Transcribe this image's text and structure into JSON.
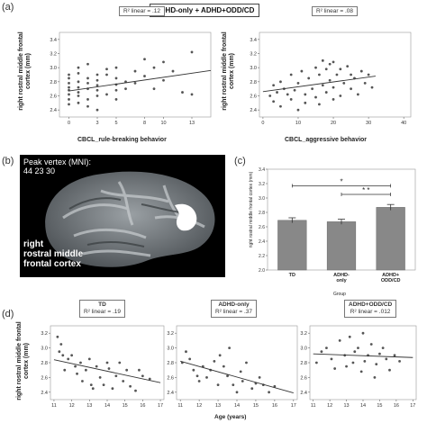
{
  "panels": {
    "a": {
      "letter": "(a)",
      "header": "ADHD-only + ADHD+ODD/CD",
      "ylabel_lines": [
        "right rostral middle frontal",
        "cortex (mm)"
      ],
      "left": {
        "r2_label": "R² linear = .12",
        "xlabel": "CBCL_rule-breaking behavior"
      },
      "right": {
        "r2_label": "R² linear = .08",
        "xlabel": "CBCL_aggressive behavior"
      }
    },
    "b": {
      "letter": "(b)",
      "peak_title": "Peak vertex (MNI):",
      "peak_coords": "44 23 30",
      "region_lines": [
        "right",
        "rostral middle",
        "frontal cortex"
      ]
    },
    "c": {
      "letter": "(c)",
      "ylabel_lines": [
        "right rostral middle frontal cortex (mm)"
      ],
      "xlabel": "Group",
      "sig1": "*",
      "sig2": "* *"
    },
    "d": {
      "letter": "(d)",
      "ylabel_lines": [
        "right rostral middle frontal",
        "cortex (mm)"
      ],
      "xlabel": "Age (years)",
      "sub": [
        {
          "title": "TD",
          "r2_label": "R² linear = .19"
        },
        {
          "title": "ADHD-only",
          "r2_label": "R² linear = .37"
        },
        {
          "title": "ADHD+ODD/CD",
          "r2_label": "R² linear = .012"
        }
      ]
    }
  },
  "colors": {
    "points": "#555555",
    "line": "#333333",
    "bars": "#888888",
    "highlight": "#ffffff",
    "brain_bg": "#000000"
  },
  "chart_data": [
    {
      "type": "scatter",
      "id": "a-left",
      "xlabel": "CBCL_rule-breaking behavior",
      "ylabel": "right rostral middle frontal cortex (mm)",
      "xlim": [
        -1,
        15
      ],
      "ylim": [
        2.3,
        3.5
      ],
      "xticks": [
        0,
        3,
        5,
        8,
        10,
        13
      ],
      "yticks": [
        2.4,
        2.6,
        2.8,
        3.0,
        3.2,
        3.4
      ],
      "x": [
        0,
        0,
        0,
        0,
        0,
        0,
        0,
        0,
        1,
        1,
        1,
        1,
        1,
        1,
        1,
        2,
        2,
        2,
        2,
        2,
        2,
        3,
        3,
        3,
        3,
        3,
        3,
        4,
        4,
        4,
        5,
        5,
        5,
        5,
        5,
        6,
        6,
        7,
        7,
        8,
        8,
        9,
        9,
        10,
        10,
        11,
        12,
        13,
        13
      ],
      "y": [
        2.55,
        2.62,
        2.68,
        2.72,
        2.78,
        2.85,
        2.9,
        2.48,
        2.6,
        2.65,
        2.72,
        2.8,
        2.92,
        3.0,
        2.5,
        2.55,
        2.7,
        2.78,
        2.85,
        2.45,
        3.05,
        2.6,
        2.68,
        2.75,
        2.82,
        2.9,
        2.4,
        2.62,
        2.9,
        2.98,
        2.55,
        2.68,
        2.76,
        2.85,
        3.0,
        2.7,
        2.8,
        2.78,
        2.95,
        2.88,
        3.12,
        2.7,
        3.0,
        2.82,
        3.08,
        2.95,
        2.65,
        3.22,
        2.62
      ],
      "fit": {
        "x": [
          0,
          15
        ],
        "y": [
          2.67,
          2.96
        ]
      },
      "annotation": "R² linear = .12"
    },
    {
      "type": "scatter",
      "id": "a-right",
      "xlabel": "CBCL_aggressive behavior",
      "ylabel": "right rostral middle frontal cortex (mm)",
      "xlim": [
        -1,
        42
      ],
      "ylim": [
        2.3,
        3.5
      ],
      "xticks": [
        0,
        10,
        20,
        30,
        40
      ],
      "yticks": [
        2.4,
        2.6,
        2.8,
        3.0,
        3.2,
        3.4
      ],
      "x": [
        2,
        3,
        3,
        4,
        5,
        5,
        6,
        7,
        8,
        8,
        9,
        10,
        10,
        11,
        12,
        12,
        13,
        14,
        15,
        15,
        16,
        16,
        17,
        17,
        18,
        18,
        19,
        19,
        20,
        20,
        20,
        21,
        22,
        22,
        23,
        24,
        25,
        25,
        26,
        27,
        28,
        29,
        30,
        31
      ],
      "y": [
        2.6,
        2.75,
        2.52,
        2.65,
        2.8,
        2.45,
        2.7,
        2.62,
        2.9,
        2.55,
        2.68,
        2.78,
        2.4,
        2.95,
        2.62,
        2.5,
        2.85,
        2.7,
        3.0,
        2.58,
        2.9,
        2.48,
        3.1,
        2.75,
        2.98,
        2.65,
        3.05,
        2.82,
        3.08,
        2.72,
        2.55,
        2.9,
        2.98,
        2.6,
        2.78,
        3.02,
        2.7,
        2.9,
        2.85,
        2.62,
        2.95,
        2.78,
        2.9,
        2.72
      ],
      "fit": {
        "x": [
          0,
          32
        ],
        "y": [
          2.66,
          2.88
        ]
      },
      "annotation": "R² linear = .08"
    },
    {
      "type": "bar",
      "id": "c",
      "categories": [
        "TD",
        "ADHD-only",
        "ADHD+ODD/CD"
      ],
      "values": [
        2.69,
        2.67,
        2.87
      ],
      "errors": [
        0.035,
        0.035,
        0.04
      ],
      "xlabel": "Group",
      "ylabel": "right rostral middle frontal cortex (mm)",
      "ylim": [
        2.0,
        3.4
      ],
      "yticks": [
        2.0,
        2.2,
        2.4,
        2.6,
        2.8,
        3.0,
        3.2,
        3.4
      ],
      "brackets": [
        {
          "from": 0,
          "to": 2,
          "y": 3.17,
          "label": "*"
        },
        {
          "from": 1,
          "to": 2,
          "y": 3.05,
          "label": "* *"
        }
      ]
    },
    {
      "type": "scatter",
      "id": "d-td",
      "title": "TD",
      "xlim": [
        10.8,
        17.2
      ],
      "ylim": [
        2.3,
        3.3
      ],
      "xticks": [
        11,
        12,
        13,
        14,
        15,
        16,
        17
      ],
      "yticks": [
        2.4,
        2.6,
        2.8,
        3.0,
        3.2
      ],
      "x": [
        11.2,
        11.3,
        11.4,
        11.5,
        11.6,
        11.8,
        12.0,
        12.2,
        12.3,
        12.5,
        12.6,
        12.8,
        13.0,
        13.1,
        13.2,
        13.4,
        13.6,
        13.8,
        14.0,
        14.1,
        14.3,
        14.5,
        14.7,
        14.9,
        15.1,
        15.3,
        15.6,
        15.8,
        16.0,
        16.4
      ],
      "y": [
        3.15,
        2.95,
        3.05,
        2.9,
        2.7,
        2.85,
        2.9,
        2.75,
        2.65,
        2.8,
        2.55,
        2.7,
        2.85,
        2.5,
        2.45,
        2.75,
        2.6,
        2.5,
        2.8,
        2.72,
        2.45,
        2.62,
        2.8,
        2.55,
        2.7,
        2.48,
        2.42,
        2.7,
        2.62,
        2.58
      ],
      "fit": {
        "x": [
          11,
          17
        ],
        "y": [
          2.84,
          2.53
        ]
      },
      "annotation": "R² linear = .19"
    },
    {
      "type": "scatter",
      "id": "d-adhd",
      "title": "ADHD-only",
      "xlim": [
        10.8,
        17.2
      ],
      "ylim": [
        2.3,
        3.3
      ],
      "xticks": [
        11,
        12,
        13,
        14,
        15,
        16,
        17
      ],
      "yticks": [
        2.4,
        2.6,
        2.8,
        3.0,
        3.2
      ],
      "x": [
        11.1,
        11.3,
        11.5,
        11.7,
        11.9,
        12.0,
        12.2,
        12.4,
        12.6,
        12.8,
        13.0,
        13.1,
        13.3,
        13.5,
        13.6,
        13.8,
        14.0,
        14.2,
        14.3,
        14.5,
        14.8,
        15.0,
        15.2,
        15.4,
        15.7,
        16.0
      ],
      "y": [
        2.8,
        2.95,
        2.85,
        2.7,
        2.62,
        2.55,
        2.75,
        2.6,
        2.7,
        2.82,
        2.5,
        2.9,
        2.75,
        2.62,
        3.0,
        2.5,
        2.4,
        2.68,
        2.55,
        2.8,
        2.45,
        2.52,
        2.6,
        2.5,
        2.4,
        2.48
      ],
      "fit": {
        "x": [
          11,
          17
        ],
        "y": [
          2.82,
          2.39
        ]
      },
      "annotation": "R² linear = .37"
    },
    {
      "type": "scatter",
      "id": "d-oddcd",
      "title": "ADHD+ODD/CD",
      "xlim": [
        10.8,
        17.2
      ],
      "ylim": [
        2.3,
        3.3
      ],
      "xticks": [
        11,
        12,
        13,
        14,
        15,
        16,
        17
      ],
      "yticks": [
        2.4,
        2.6,
        2.8,
        3.0,
        3.2
      ],
      "x": [
        11.2,
        11.5,
        11.8,
        12.1,
        12.3,
        12.6,
        12.9,
        13.0,
        13.2,
        13.4,
        13.5,
        13.7,
        13.9,
        14.0,
        14.1,
        14.3,
        14.5,
        14.7,
        14.8,
        15.0,
        15.2,
        15.4,
        15.6,
        15.9,
        16.2
      ],
      "y": [
        2.8,
        2.95,
        3.0,
        2.85,
        2.72,
        3.1,
        2.9,
        2.75,
        3.15,
        2.8,
        2.95,
        3.0,
        2.68,
        3.2,
        2.82,
        2.9,
        3.05,
        2.6,
        2.78,
        2.92,
        3.0,
        2.85,
        2.7,
        2.9,
        2.82
      ],
      "fit": {
        "x": [
          11,
          17
        ],
        "y": [
          2.92,
          2.87
        ]
      },
      "annotation": "R² linear = .012"
    }
  ]
}
